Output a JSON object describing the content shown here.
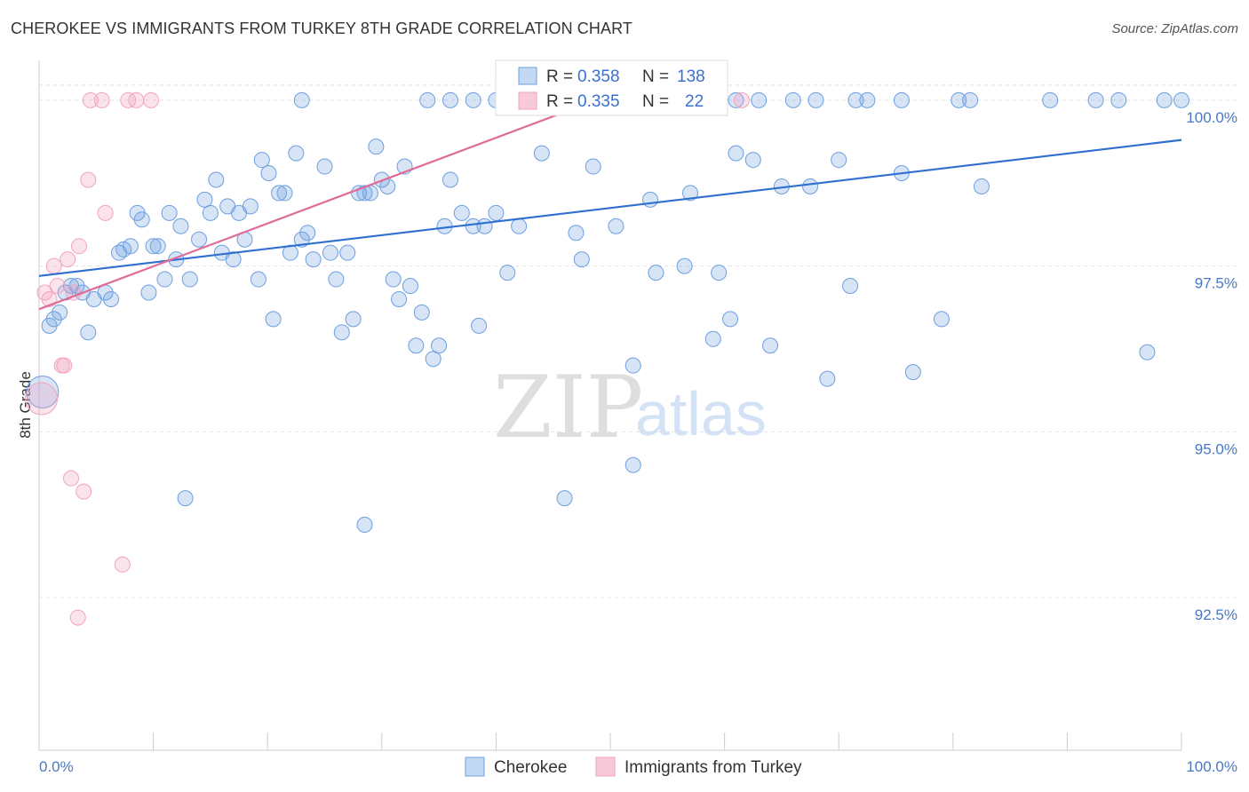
{
  "title": "CHEROKEE VS IMMIGRANTS FROM TURKEY 8TH GRADE CORRELATION CHART",
  "source": "Source: ZipAtlas.com",
  "watermark": {
    "zip": "ZIP",
    "atlas": "atlas"
  },
  "colors": {
    "blue": "#6d9fe0",
    "blue_line": "#2f6fd0",
    "pink": "#f2a3bf",
    "pink_line": "#e06b98",
    "grid": "#e3e3e3",
    "tick_text": "#4a78c2"
  },
  "legend": {
    "series": [
      {
        "r_label": "R =",
        "r_value": "0.358",
        "n_label": "N =",
        "n_value": "138"
      },
      {
        "r_label": "R =",
        "r_value": "0.335",
        "n_label": "N =",
        "n_value": "22"
      }
    ]
  },
  "chart_data": {
    "type": "scatter",
    "xlabel": "",
    "ylabel": "8th Grade",
    "xlim": [
      0,
      100
    ],
    "ylim": [
      90.2,
      100.6
    ],
    "x_tick_labels": [
      "0.0%",
      "100.0%"
    ],
    "y_ticks": [
      92.5,
      95.0,
      97.5,
      100.0
    ],
    "y_tick_labels": [
      "92.5%",
      "95.0%",
      "97.5%",
      "100.0%"
    ],
    "grid": true,
    "legend_position": "top-center",
    "series": [
      {
        "name": "Cherokee",
        "color": "#6d9fe0",
        "trend": {
          "x": [
            0,
            100
          ],
          "y": [
            97.35,
            99.4
          ]
        },
        "points": [
          [
            0.9,
            96.6
          ],
          [
            1.3,
            96.7
          ],
          [
            1.8,
            96.8
          ],
          [
            2.3,
            97.1
          ],
          [
            2.8,
            97.2
          ],
          [
            3.3,
            97.2
          ],
          [
            3.8,
            97.1
          ],
          [
            4.8,
            97.0
          ],
          [
            5.8,
            97.1
          ],
          [
            6.3,
            97.0
          ],
          [
            4.3,
            96.5
          ],
          [
            7.0,
            97.7
          ],
          [
            7.4,
            97.75
          ],
          [
            8.0,
            97.8
          ],
          [
            8.6,
            98.3
          ],
          [
            9.0,
            98.2
          ],
          [
            9.6,
            97.1
          ],
          [
            10.0,
            97.8
          ],
          [
            10.4,
            97.8
          ],
          [
            11.0,
            97.3
          ],
          [
            11.4,
            98.3
          ],
          [
            12.0,
            97.6
          ],
          [
            12.4,
            98.1
          ],
          [
            13.2,
            97.3
          ],
          [
            14.0,
            97.9
          ],
          [
            14.5,
            98.5
          ],
          [
            15.0,
            98.3
          ],
          [
            15.5,
            98.8
          ],
          [
            16.0,
            97.7
          ],
          [
            16.5,
            98.4
          ],
          [
            17.0,
            97.6
          ],
          [
            17.5,
            98.3
          ],
          [
            18.0,
            97.9
          ],
          [
            18.5,
            98.4
          ],
          [
            19.2,
            97.3
          ],
          [
            19.5,
            99.1
          ],
          [
            20.1,
            98.9
          ],
          [
            20.5,
            96.7
          ],
          [
            21.0,
            98.6
          ],
          [
            21.5,
            98.6
          ],
          [
            22.0,
            97.7
          ],
          [
            22.5,
            99.2
          ],
          [
            23.0,
            97.9
          ],
          [
            23.5,
            98.0
          ],
          [
            24.0,
            97.6
          ],
          [
            25.0,
            99.0
          ],
          [
            25.5,
            97.7
          ],
          [
            26.0,
            97.3
          ],
          [
            26.5,
            96.5
          ],
          [
            27.0,
            97.7
          ],
          [
            27.5,
            96.7
          ],
          [
            28.0,
            98.6
          ],
          [
            28.5,
            98.6
          ],
          [
            29.0,
            98.6
          ],
          [
            29.5,
            99.3
          ],
          [
            30.0,
            98.8
          ],
          [
            30.5,
            98.7
          ],
          [
            31.0,
            97.3
          ],
          [
            31.5,
            97.0
          ],
          [
            32.0,
            99.0
          ],
          [
            32.5,
            97.2
          ],
          [
            33.0,
            96.3
          ],
          [
            33.5,
            96.8
          ],
          [
            34.5,
            96.1
          ],
          [
            35.0,
            96.3
          ],
          [
            35.5,
            98.1
          ],
          [
            36.0,
            98.8
          ],
          [
            37.0,
            98.3
          ],
          [
            38.0,
            98.1
          ],
          [
            38.5,
            96.6
          ],
          [
            39.0,
            98.1
          ],
          [
            40.0,
            98.3
          ],
          [
            41.0,
            97.4
          ],
          [
            42.0,
            98.1
          ],
          [
            44.0,
            99.2
          ],
          [
            47.0,
            98.0
          ],
          [
            47.5,
            97.6
          ],
          [
            48.5,
            99.0
          ],
          [
            50.5,
            98.1
          ],
          [
            52.0,
            96.0
          ],
          [
            53.5,
            98.5
          ],
          [
            54.0,
            97.4
          ],
          [
            56.5,
            97.5
          ],
          [
            57.0,
            98.6
          ],
          [
            59.0,
            96.4
          ],
          [
            59.5,
            97.4
          ],
          [
            60.5,
            96.7
          ],
          [
            61.0,
            99.2
          ],
          [
            62.5,
            99.1
          ],
          [
            64.0,
            96.3
          ],
          [
            65.0,
            98.7
          ],
          [
            67.5,
            98.7
          ],
          [
            69.0,
            95.8
          ],
          [
            70.0,
            99.1
          ],
          [
            71.0,
            97.2
          ],
          [
            75.5,
            98.9
          ],
          [
            76.5,
            95.9
          ],
          [
            79.0,
            96.7
          ],
          [
            82.5,
            98.7
          ],
          [
            97.0,
            96.2
          ],
          [
            23.0,
            100.0
          ],
          [
            34.0,
            100.0
          ],
          [
            36.0,
            100.0
          ],
          [
            38.0,
            100.0
          ],
          [
            40.0,
            100.0
          ],
          [
            42.0,
            100.0
          ],
          [
            44.0,
            100.0
          ],
          [
            46.0,
            100.0
          ],
          [
            48.0,
            100.0
          ],
          [
            50.0,
            100.0
          ],
          [
            52.0,
            100.0
          ],
          [
            54.5,
            100.0
          ],
          [
            57.0,
            100.0
          ],
          [
            59.5,
            100.0
          ],
          [
            61.0,
            100.0
          ],
          [
            63.0,
            100.0
          ],
          [
            66.0,
            100.0
          ],
          [
            68.0,
            100.0
          ],
          [
            71.5,
            100.0
          ],
          [
            72.5,
            100.0
          ],
          [
            75.5,
            100.0
          ],
          [
            80.5,
            100.0
          ],
          [
            81.5,
            100.0
          ],
          [
            88.5,
            100.0
          ],
          [
            92.5,
            100.0
          ],
          [
            94.5,
            100.0
          ],
          [
            98.5,
            100.0
          ],
          [
            100.0,
            100.0
          ],
          [
            12.8,
            94.0
          ],
          [
            28.5,
            93.6
          ],
          [
            46.0,
            94.0
          ],
          [
            52.0,
            94.5
          ],
          [
            0.3,
            95.6
          ]
        ]
      },
      {
        "name": "Immigrants from Turkey",
        "color": "#f2a3bf",
        "trend": {
          "x": [
            0,
            48
          ],
          "y": [
            96.85,
            99.95
          ]
        },
        "points": [
          [
            0.2,
            95.5
          ],
          [
            0.5,
            97.1
          ],
          [
            0.9,
            97.0
          ],
          [
            1.3,
            97.5
          ],
          [
            1.6,
            97.2
          ],
          [
            2.0,
            96.0
          ],
          [
            2.2,
            96.0
          ],
          [
            2.5,
            97.6
          ],
          [
            3.0,
            97.1
          ],
          [
            3.5,
            97.8
          ],
          [
            4.3,
            98.8
          ],
          [
            4.5,
            100.0
          ],
          [
            5.5,
            100.0
          ],
          [
            5.8,
            98.3
          ],
          [
            7.8,
            100.0
          ],
          [
            8.5,
            100.0
          ],
          [
            9.8,
            100.0
          ],
          [
            2.8,
            94.3
          ],
          [
            3.9,
            94.1
          ],
          [
            7.3,
            93.0
          ],
          [
            3.4,
            92.2
          ],
          [
            61.5,
            100.0
          ]
        ]
      }
    ]
  },
  "bottom_legend": [
    {
      "label": "Cherokee"
    },
    {
      "label": "Immigrants from Turkey"
    }
  ]
}
